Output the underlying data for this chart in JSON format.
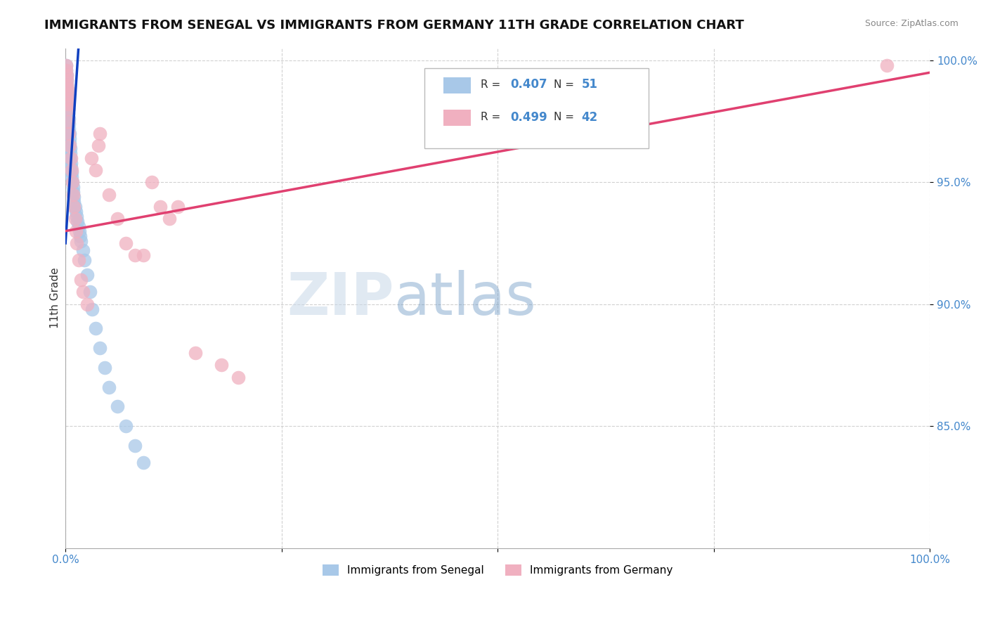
{
  "title": "IMMIGRANTS FROM SENEGAL VS IMMIGRANTS FROM GERMANY 11TH GRADE CORRELATION CHART",
  "source": "Source: ZipAtlas.com",
  "ylabel": "11th Grade",
  "xlim": [
    0.0,
    1.0
  ],
  "ylim": [
    0.8,
    1.005
  ],
  "ytick_positions": [
    0.85,
    0.9,
    0.95,
    1.0
  ],
  "ytick_labels": [
    "85.0%",
    "90.0%",
    "95.0%",
    "100.0%"
  ],
  "blue_color": "#a8c8e8",
  "pink_color": "#f0b0c0",
  "blue_line_color": "#1040c0",
  "pink_line_color": "#e04070",
  "legend_x_label": "Immigrants from Senegal",
  "legend_pink_x_label": "Immigrants from Germany",
  "blue_R": 0.407,
  "blue_N": 51,
  "pink_R": 0.499,
  "pink_N": 42,
  "blue_scatter_x": [
    0.0008,
    0.001,
    0.0012,
    0.0015,
    0.0018,
    0.002,
    0.0022,
    0.0025,
    0.0028,
    0.003,
    0.0032,
    0.0035,
    0.0038,
    0.004,
    0.0042,
    0.0045,
    0.0048,
    0.005,
    0.0052,
    0.0055,
    0.0058,
    0.006,
    0.0065,
    0.007,
    0.0075,
    0.008,
    0.0085,
    0.009,
    0.0095,
    0.01,
    0.011,
    0.012,
    0.013,
    0.014,
    0.015,
    0.016,
    0.017,
    0.018,
    0.02,
    0.022,
    0.025,
    0.028,
    0.031,
    0.035,
    0.04,
    0.045,
    0.05,
    0.06,
    0.07,
    0.08,
    0.09
  ],
  "blue_scatter_y": [
    0.998,
    0.996,
    0.994,
    0.992,
    0.99,
    0.988,
    0.987,
    0.985,
    0.984,
    0.982,
    0.98,
    0.978,
    0.976,
    0.974,
    0.972,
    0.97,
    0.968,
    0.966,
    0.964,
    0.962,
    0.96,
    0.958,
    0.956,
    0.954,
    0.952,
    0.95,
    0.948,
    0.946,
    0.944,
    0.942,
    0.94,
    0.938,
    0.936,
    0.934,
    0.932,
    0.93,
    0.928,
    0.926,
    0.922,
    0.918,
    0.912,
    0.905,
    0.898,
    0.89,
    0.882,
    0.874,
    0.866,
    0.858,
    0.85,
    0.842,
    0.835
  ],
  "pink_scatter_x": [
    0.0008,
    0.001,
    0.0012,
    0.0015,
    0.0018,
    0.002,
    0.0022,
    0.0025,
    0.0028,
    0.003,
    0.0035,
    0.004,
    0.005,
    0.006,
    0.007,
    0.008,
    0.009,
    0.01,
    0.011,
    0.012,
    0.013,
    0.015,
    0.018,
    0.02,
    0.025,
    0.03,
    0.035,
    0.038,
    0.04,
    0.05,
    0.06,
    0.07,
    0.08,
    0.09,
    0.1,
    0.11,
    0.12,
    0.13,
    0.15,
    0.18,
    0.2,
    0.95
  ],
  "pink_scatter_y": [
    0.998,
    0.996,
    0.994,
    0.992,
    0.99,
    0.988,
    0.986,
    0.984,
    0.982,
    0.98,
    0.975,
    0.97,
    0.965,
    0.96,
    0.955,
    0.95,
    0.945,
    0.94,
    0.935,
    0.93,
    0.925,
    0.918,
    0.91,
    0.905,
    0.9,
    0.96,
    0.955,
    0.965,
    0.97,
    0.945,
    0.935,
    0.925,
    0.92,
    0.92,
    0.95,
    0.94,
    0.935,
    0.94,
    0.88,
    0.875,
    0.87,
    0.998
  ],
  "watermark_zip": "ZIP",
  "watermark_atlas": "atlas",
  "grid_color": "#cccccc",
  "bg_color": "#ffffff",
  "title_color": "#111111",
  "source_color": "#888888",
  "tick_color": "#4488cc",
  "axis_label_color": "#333333"
}
